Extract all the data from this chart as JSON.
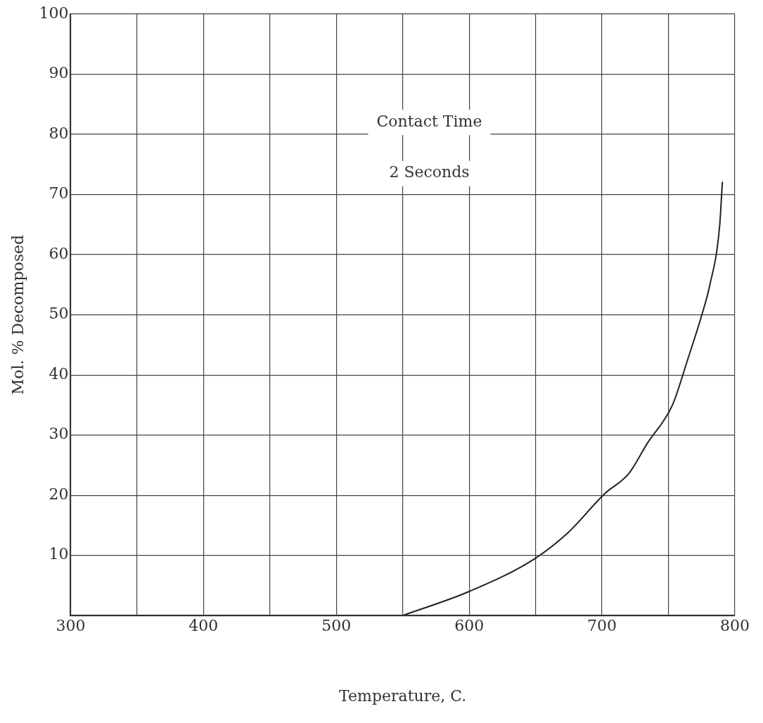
{
  "chart_data": {
    "type": "line",
    "xlabel": "Temperature, C.",
    "ylabel": "Mol. % Decomposed",
    "annotations": [
      "Contact Time",
      "2 Seconds"
    ],
    "series": [
      {
        "color": "#222222",
        "x": [
          550,
          600,
          649,
          674.5,
          701.7,
          720.5,
          734,
          753,
          764.4,
          775,
          781,
          788.5,
          790.6
        ],
        "values": [
          0,
          4,
          9.4,
          13.8,
          20.2,
          23.7,
          28.6,
          35,
          42.5,
          49.9,
          54.8,
          64.7,
          72.1
        ]
      }
    ],
    "xlim": [
      300,
      800
    ],
    "ylim": [
      0,
      100
    ],
    "xticks": [
      300,
      {
        "value": 350,
        "label": null
      },
      400,
      {
        "value": 450,
        "label": null
      },
      500,
      {
        "value": 550,
        "label": null
      },
      600,
      {
        "value": 650,
        "label": null
      },
      700,
      {
        "value": 750,
        "label": null
      },
      800
    ],
    "yticks": [
      {
        "value": 0,
        "label": null
      },
      10,
      20,
      30,
      40,
      50,
      60,
      70,
      80,
      90,
      100
    ],
    "grid": true,
    "legend": false,
    "marker": "none",
    "line_style": "solid"
  }
}
